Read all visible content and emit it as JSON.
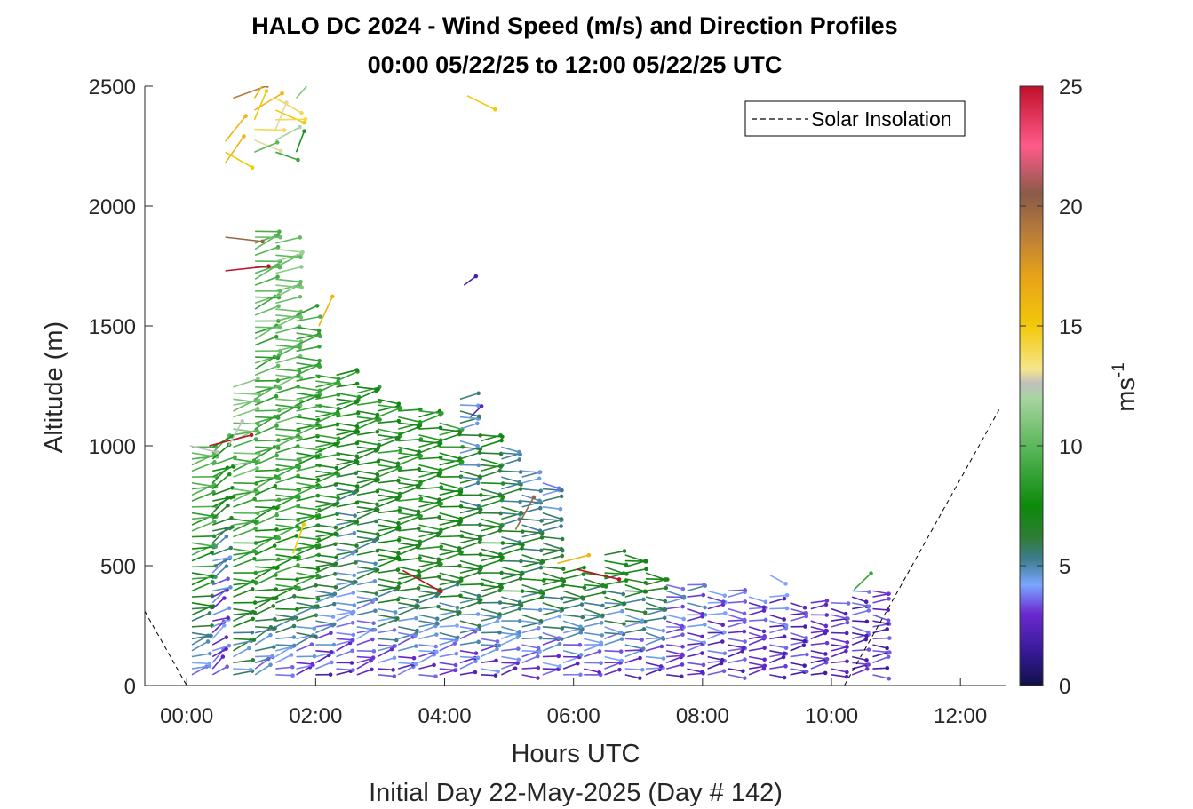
{
  "chart_data": {
    "type": "scatter",
    "title_line1": "HALO DC 2024 - Wind Speed (m/s) and Direction Profiles",
    "title_line2": "00:00 05/22/25 to 12:00 05/22/25  UTC",
    "xlabel": "Hours UTC",
    "xlabel2": "Initial Day 22-May-2025 (Day # 142)",
    "ylabel": "Altitude (m)",
    "xlim": [
      -0.65,
      12.7
    ],
    "ylim": [
      0,
      2500
    ],
    "x_ticks": [
      {
        "value": 0,
        "label": "00:00"
      },
      {
        "value": 2,
        "label": "02:00"
      },
      {
        "value": 4,
        "label": "04:00"
      },
      {
        "value": 6,
        "label": "06:00"
      },
      {
        "value": 8,
        "label": "08:00"
      },
      {
        "value": 10,
        "label": "10:00"
      },
      {
        "value": 12,
        "label": "12:00"
      }
    ],
    "y_ticks": [
      {
        "value": 0,
        "label": "0"
      },
      {
        "value": 500,
        "label": "500"
      },
      {
        "value": 1000,
        "label": "1000"
      },
      {
        "value": 1500,
        "label": "1500"
      },
      {
        "value": 2000,
        "label": "2000"
      },
      {
        "value": 2500,
        "label": "2500"
      }
    ],
    "colorbar": {
      "label": "ms",
      "label_exponent": "-1",
      "range": [
        0,
        25
      ],
      "ticks": [
        {
          "value": 0,
          "label": "0"
        },
        {
          "value": 5,
          "label": "5"
        },
        {
          "value": 10,
          "label": "10"
        },
        {
          "value": 15,
          "label": "15"
        },
        {
          "value": 20,
          "label": "20"
        },
        {
          "value": 25,
          "label": "25"
        }
      ],
      "stops": [
        {
          "v": 0,
          "c": "#10104a"
        },
        {
          "v": 1.5,
          "c": "#3a1a9a"
        },
        {
          "v": 3,
          "c": "#6a2ad0"
        },
        {
          "v": 4.2,
          "c": "#7aa6ff"
        },
        {
          "v": 5.3,
          "c": "#3c7c8c"
        },
        {
          "v": 6.2,
          "c": "#2e7d32"
        },
        {
          "v": 7.5,
          "c": "#0c8a0c"
        },
        {
          "v": 10,
          "c": "#5cb85c"
        },
        {
          "v": 12,
          "c": "#a8d5a0"
        },
        {
          "v": 12.6,
          "c": "#bfbfbf"
        },
        {
          "v": 13.2,
          "c": "#f6e68a"
        },
        {
          "v": 15,
          "c": "#f2c80a"
        },
        {
          "v": 17,
          "c": "#e8a418"
        },
        {
          "v": 19,
          "c": "#b57a3c"
        },
        {
          "v": 20.5,
          "c": "#8a5a48"
        },
        {
          "v": 22.5,
          "c": "#ff5a8a"
        },
        {
          "v": 25,
          "c": "#c0102a"
        }
      ]
    },
    "legend": {
      "label": "Solar Insolation",
      "position": "top-right",
      "style": "dashed",
      "color": "#000000"
    },
    "solar_insolation_line": [
      [
        -0.65,
        310
      ],
      [
        0.0,
        0
      ],
      [
        10.2,
        0
      ],
      [
        11.0,
        380
      ],
      [
        12.6,
        1150
      ]
    ],
    "series": [
      {
        "name": "Solar Insolation",
        "type": "line",
        "style": "dashed"
      },
      {
        "type": "wind_barbs",
        "profiles": [
          {
            "t": 0.08,
            "top": 1000,
            "hi": 10,
            "mid": 8,
            "lo": 3.5,
            "ang": 15
          },
          {
            "t": 0.4,
            "top": 1000,
            "hi": 9,
            "mid": 4,
            "lo": 3,
            "ang": 35
          },
          {
            "t": 0.72,
            "top": 1250,
            "hi": 11,
            "mid": 8,
            "lo": 4.5,
            "ang": 15
          },
          {
            "t": 1.06,
            "top": 1900,
            "hi": 10,
            "mid": 8,
            "lo": 3.5,
            "ang": 20
          },
          {
            "t": 1.38,
            "top": 1850,
            "hi": 11,
            "mid": 8,
            "lo": 3,
            "ang": 15
          },
          {
            "t": 1.7,
            "top": 1550,
            "hi": 9,
            "mid": 8,
            "lo": 2.5,
            "ang": 12
          },
          {
            "t": 2.0,
            "top": 1300,
            "hi": 9,
            "mid": 6,
            "lo": 2.5,
            "ang": 12
          },
          {
            "t": 2.32,
            "top": 1300,
            "hi": 8,
            "mid": 5,
            "lo": 2.5,
            "ang": 12
          },
          {
            "t": 2.64,
            "top": 1250,
            "hi": 8,
            "mid": 5.5,
            "lo": 2.5,
            "ang": 12
          },
          {
            "t": 2.96,
            "top": 1200,
            "hi": 8,
            "mid": 7,
            "lo": 2.5,
            "ang": 10
          },
          {
            "t": 3.28,
            "top": 1150,
            "hi": 8,
            "mid": 7,
            "lo": 2.5,
            "ang": 10
          },
          {
            "t": 3.6,
            "top": 1150,
            "hi": 8,
            "mid": 7,
            "lo": 2.5,
            "ang": 10
          },
          {
            "t": 3.92,
            "top": 1100,
            "hi": 8,
            "mid": 7,
            "lo": 2.5,
            "ang": 8
          },
          {
            "t": 4.24,
            "top": 1200,
            "hi": 5,
            "mid": 7,
            "lo": 2.5,
            "ang": 8
          },
          {
            "t": 4.56,
            "top": 1050,
            "hi": 7,
            "mid": 7,
            "lo": 2.5,
            "ang": 8
          },
          {
            "t": 4.88,
            "top": 1000,
            "hi": 5,
            "mid": 7,
            "lo": 2.5,
            "ang": 8
          },
          {
            "t": 5.2,
            "top": 900,
            "hi": 4.5,
            "mid": 7,
            "lo": 2.5,
            "ang": 6
          },
          {
            "t": 5.52,
            "top": 850,
            "hi": 4.5,
            "mid": 7,
            "lo": 2.5,
            "ang": 6
          },
          {
            "t": 5.84,
            "top": 480,
            "hi": 7,
            "mid": 7,
            "lo": 2.5,
            "ang": 5
          },
          {
            "t": 6.16,
            "top": 480,
            "hi": 7,
            "mid": 7,
            "lo": 2.5,
            "ang": 5
          },
          {
            "t": 6.48,
            "top": 560,
            "hi": 7,
            "mid": 7,
            "lo": 2.5,
            "ang": 5
          },
          {
            "t": 6.8,
            "top": 560,
            "hi": 7,
            "mid": 7,
            "lo": 2.5,
            "ang": 5
          },
          {
            "t": 7.12,
            "top": 480,
            "hi": 7,
            "mid": 7,
            "lo": 2.5,
            "ang": 4
          },
          {
            "t": 7.44,
            "top": 420,
            "hi": 4.5,
            "mid": 4.5,
            "lo": 2.5,
            "ang": 4
          },
          {
            "t": 7.76,
            "top": 420,
            "hi": 4.5,
            "mid": 4.5,
            "lo": 2.5,
            "ang": 4
          },
          {
            "t": 8.08,
            "top": 400,
            "hi": 4.5,
            "mid": 4,
            "lo": 2.5,
            "ang": 4
          },
          {
            "t": 8.4,
            "top": 400,
            "hi": 4,
            "mid": 4,
            "lo": 2.5,
            "ang": 4
          },
          {
            "t": 8.72,
            "top": 380,
            "hi": 3.5,
            "mid": 3.5,
            "lo": 2.5,
            "ang": 4
          },
          {
            "t": 9.04,
            "top": 380,
            "hi": 3.5,
            "mid": 3.5,
            "lo": 2.5,
            "ang": 4
          },
          {
            "t": 9.36,
            "top": 360,
            "hi": 3,
            "mid": 3,
            "lo": 2.5,
            "ang": 4
          },
          {
            "t": 9.68,
            "top": 360,
            "hi": 3,
            "mid": 3,
            "lo": 2.5,
            "ang": 4
          },
          {
            "t": 10.0,
            "top": 360,
            "hi": 3,
            "mid": 3,
            "lo": 2.5,
            "ang": 4
          },
          {
            "t": 10.32,
            "top": 400,
            "hi": 3,
            "mid": 3,
            "lo": 2.5,
            "ang": 4
          },
          {
            "t": 10.64,
            "top": 400,
            "hi": 3,
            "mid": 3,
            "lo": 2.5,
            "ang": 4
          }
        ],
        "isolated": [
          {
            "t": 0.72,
            "alt": 2450,
            "spd": 19
          },
          {
            "t": 1.05,
            "alt": 2450,
            "spd": 16
          },
          {
            "t": 1.38,
            "alt": 2450,
            "spd": 14
          },
          {
            "t": 1.7,
            "alt": 2450,
            "spd": 11
          },
          {
            "t": 1.05,
            "alt": 2400,
            "spd": 16
          },
          {
            "t": 1.38,
            "alt": 2400,
            "spd": 15
          },
          {
            "t": 1.05,
            "alt": 2360,
            "spd": 15
          },
          {
            "t": 1.38,
            "alt": 2360,
            "spd": 14
          },
          {
            "t": 1.05,
            "alt": 2320,
            "spd": 14
          },
          {
            "t": 1.38,
            "alt": 2320,
            "spd": 13
          },
          {
            "t": 1.05,
            "alt": 2275,
            "spd": 13
          },
          {
            "t": 1.38,
            "alt": 2275,
            "spd": 12
          },
          {
            "t": 0.6,
            "alt": 2270,
            "spd": 16
          },
          {
            "t": 0.6,
            "alt": 2225,
            "spd": 15
          },
          {
            "t": 0.6,
            "alt": 2180,
            "spd": 16
          },
          {
            "t": 1.05,
            "alt": 2225,
            "spd": 10
          },
          {
            "t": 1.38,
            "alt": 2225,
            "spd": 9
          },
          {
            "t": 1.7,
            "alt": 2225,
            "spd": 8
          },
          {
            "t": 0.6,
            "alt": 1870,
            "spd": 20
          },
          {
            "t": 0.6,
            "alt": 1730,
            "spd": 25
          },
          {
            "t": 2.05,
            "alt": 1500,
            "spd": 16
          },
          {
            "t": 4.35,
            "alt": 2460,
            "spd": 15
          },
          {
            "t": 4.3,
            "alt": 1670,
            "spd": 2
          },
          {
            "t": 4.4,
            "alt": 1120,
            "spd": 2.5
          },
          {
            "t": 3.35,
            "alt": 480,
            "spd": 25
          },
          {
            "t": 5.1,
            "alt": 650,
            "spd": 20
          },
          {
            "t": 5.75,
            "alt": 510,
            "spd": 16
          },
          {
            "t": 6.05,
            "alt": 485,
            "spd": 25
          },
          {
            "t": 1.65,
            "alt": 550,
            "spd": 15
          },
          {
            "t": 0.05,
            "alt": 1000,
            "spd": 12.5
          },
          {
            "t": 0.35,
            "alt": 1000,
            "spd": 25
          },
          {
            "t": 0.65,
            "alt": 1000,
            "spd": 12.5
          },
          {
            "t": 9.05,
            "alt": 460,
            "spd": 4.2
          },
          {
            "t": 10.35,
            "alt": 400,
            "spd": 9
          }
        ]
      }
    ]
  }
}
